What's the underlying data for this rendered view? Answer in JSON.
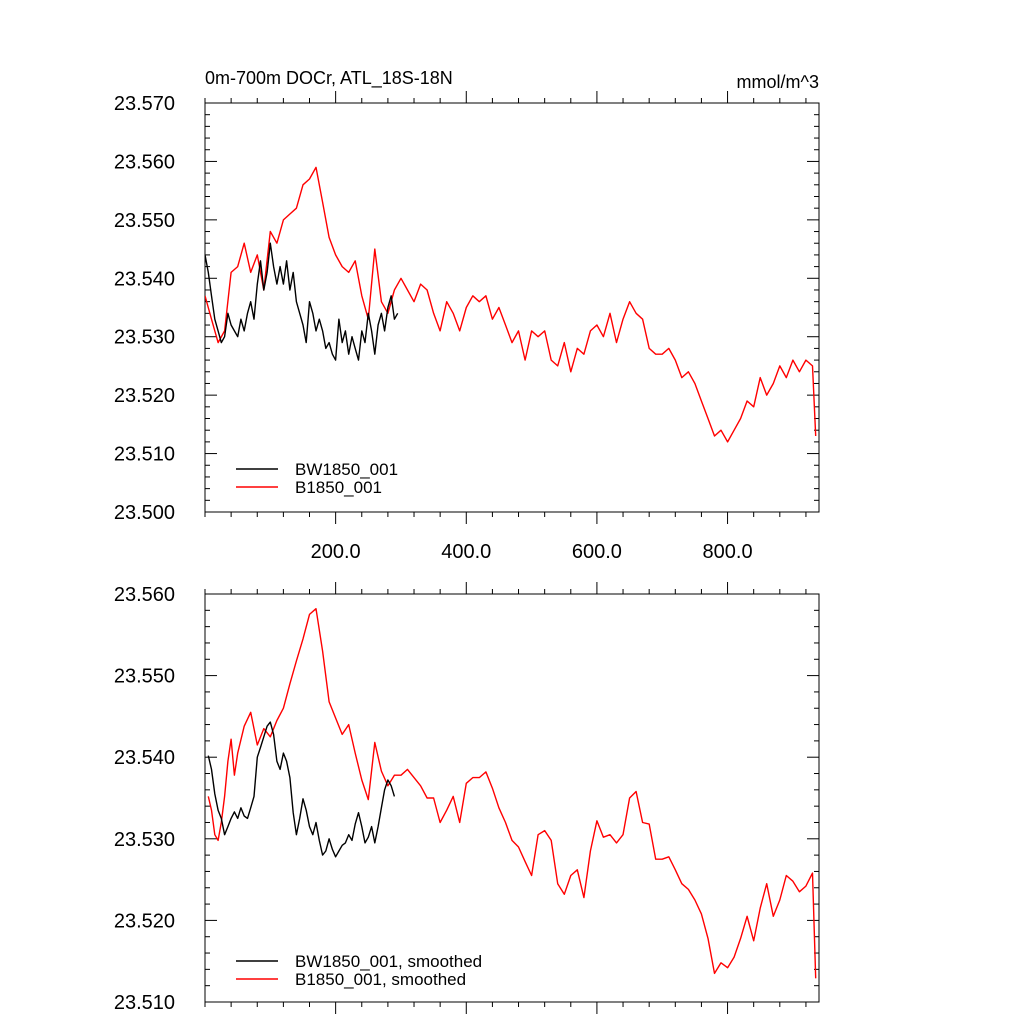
{
  "chart_data": [
    {
      "type": "line",
      "title": "0m-700m DOCr, ATL_18S-18N",
      "units": "mmol/m^3",
      "xlabel": "",
      "ylabel": "",
      "xlim": [
        0,
        940
      ],
      "ylim": [
        23.5,
        23.57
      ],
      "xticks": [
        200,
        400,
        600,
        800
      ],
      "xtick_labels": [
        "200.0",
        "400.0",
        "600.0",
        "800.0"
      ],
      "yticks": [
        23.5,
        23.51,
        23.52,
        23.53,
        23.54,
        23.55,
        23.56,
        23.57
      ],
      "ytick_labels": [
        "23.500",
        "23.510",
        "23.520",
        "23.530",
        "23.540",
        "23.550",
        "23.560",
        "23.570"
      ],
      "grid": false,
      "legend_position": "bottom-left",
      "series": [
        {
          "name": "BW1850_001",
          "color": "#000000",
          "x": [
            0,
            5,
            10,
            15,
            20,
            25,
            30,
            35,
            40,
            45,
            50,
            55,
            60,
            65,
            70,
            75,
            80,
            85,
            90,
            95,
            100,
            105,
            110,
            115,
            120,
            125,
            130,
            135,
            140,
            145,
            150,
            155,
            160,
            165,
            170,
            175,
            180,
            185,
            190,
            195,
            200,
            205,
            210,
            215,
            220,
            225,
            230,
            235,
            240,
            245,
            250,
            255,
            260,
            265,
            270,
            275,
            280,
            285,
            290,
            295
          ],
          "y": [
            23.544,
            23.541,
            23.537,
            23.533,
            23.531,
            23.529,
            23.53,
            23.534,
            23.532,
            23.531,
            23.53,
            23.533,
            23.531,
            23.534,
            23.536,
            23.533,
            23.539,
            23.543,
            23.538,
            23.541,
            23.546,
            23.542,
            23.539,
            23.542,
            23.539,
            23.543,
            23.538,
            23.541,
            23.536,
            23.534,
            23.532,
            23.529,
            23.536,
            23.534,
            23.531,
            23.533,
            23.531,
            23.528,
            23.529,
            23.527,
            23.526,
            23.533,
            23.529,
            23.531,
            23.527,
            23.53,
            23.528,
            23.526,
            23.531,
            23.529,
            23.534,
            23.531,
            23.527,
            23.532,
            23.534,
            23.531,
            23.535,
            23.537,
            23.533,
            23.534
          ]
        },
        {
          "name": "B1850_001",
          "color": "#ff0000",
          "x": [
            0,
            10,
            20,
            30,
            40,
            50,
            60,
            70,
            80,
            90,
            100,
            110,
            120,
            130,
            140,
            150,
            160,
            170,
            180,
            190,
            200,
            210,
            220,
            230,
            240,
            250,
            260,
            270,
            280,
            290,
            300,
            310,
            320,
            330,
            340,
            350,
            360,
            370,
            380,
            390,
            400,
            410,
            420,
            430,
            440,
            450,
            460,
            470,
            480,
            490,
            500,
            510,
            520,
            530,
            540,
            550,
            560,
            570,
            580,
            590,
            600,
            610,
            620,
            630,
            640,
            650,
            660,
            670,
            680,
            690,
            700,
            710,
            720,
            730,
            740,
            750,
            760,
            770,
            780,
            790,
            800,
            810,
            820,
            830,
            840,
            850,
            860,
            870,
            880,
            890,
            900,
            910,
            920,
            930,
            935
          ],
          "y": [
            23.537,
            23.533,
            23.529,
            23.531,
            23.541,
            23.542,
            23.546,
            23.541,
            23.544,
            23.538,
            23.548,
            23.546,
            23.55,
            23.551,
            23.552,
            23.556,
            23.557,
            23.559,
            23.553,
            23.547,
            23.544,
            23.542,
            23.541,
            23.543,
            23.537,
            23.533,
            23.545,
            23.536,
            23.534,
            23.538,
            23.54,
            23.538,
            23.536,
            23.539,
            23.538,
            23.534,
            23.531,
            23.536,
            23.534,
            23.531,
            23.535,
            23.537,
            23.536,
            23.537,
            23.533,
            23.535,
            23.532,
            23.529,
            23.531,
            23.526,
            23.531,
            23.53,
            23.531,
            23.526,
            23.525,
            23.529,
            23.524,
            23.528,
            23.527,
            23.531,
            23.532,
            23.53,
            23.534,
            23.529,
            23.533,
            23.536,
            23.534,
            23.533,
            23.528,
            23.527,
            23.527,
            23.528,
            23.526,
            23.523,
            23.524,
            23.522,
            23.519,
            23.516,
            23.513,
            23.514,
            23.512,
            23.514,
            23.516,
            23.519,
            23.518,
            23.523,
            23.52,
            23.522,
            23.525,
            23.523,
            23.526,
            23.524,
            23.526,
            23.525,
            23.513
          ]
        }
      ]
    },
    {
      "type": "line",
      "title": "",
      "xlabel": "",
      "ylabel": "",
      "xlim": [
        0,
        940
      ],
      "ylim": [
        23.51,
        23.56
      ],
      "xticks": [
        200,
        400,
        600,
        800
      ],
      "xtick_labels": [],
      "yticks": [
        23.51,
        23.52,
        23.53,
        23.54,
        23.55,
        23.56
      ],
      "ytick_labels": [
        "23.510",
        "23.520",
        "23.530",
        "23.540",
        "23.550",
        "23.560"
      ],
      "grid": false,
      "legend_position": "bottom-left",
      "series": [
        {
          "name": "BW1850_001, smoothed",
          "color": "#000000",
          "x": [
            5,
            10,
            15,
            20,
            25,
            30,
            35,
            40,
            45,
            50,
            55,
            60,
            65,
            70,
            75,
            80,
            85,
            90,
            95,
            100,
            105,
            110,
            115,
            120,
            125,
            130,
            135,
            140,
            145,
            150,
            155,
            160,
            165,
            170,
            175,
            180,
            185,
            190,
            195,
            200,
            205,
            210,
            215,
            220,
            225,
            230,
            235,
            240,
            245,
            250,
            255,
            260,
            265,
            270,
            275,
            280,
            285,
            290
          ],
          "y": [
            23.5402,
            23.5385,
            23.5355,
            23.5335,
            23.5325,
            23.5305,
            23.5315,
            23.5325,
            23.5333,
            23.5325,
            23.5338,
            23.5328,
            23.5325,
            23.5338,
            23.5352,
            23.54,
            23.5412,
            23.5425,
            23.5438,
            23.5443,
            23.5428,
            23.5395,
            23.5385,
            23.5405,
            23.5395,
            23.5375,
            23.5332,
            23.5305,
            23.5325,
            23.5349,
            23.5335,
            23.5315,
            23.5305,
            23.532,
            23.5298,
            23.528,
            23.5285,
            23.53,
            23.5287,
            23.5278,
            23.5285,
            23.5292,
            23.5295,
            23.5305,
            23.5298,
            23.5318,
            23.5332,
            23.5315,
            23.5295,
            23.5302,
            23.5315,
            23.5295,
            23.5315,
            23.5338,
            23.536,
            23.5372,
            23.5365,
            23.5352
          ]
        },
        {
          "name": "B1850_001, smoothed",
          "color": "#ff0000",
          "x": [
            5,
            10,
            15,
            20,
            25,
            30,
            35,
            40,
            45,
            50,
            60,
            70,
            80,
            90,
            100,
            110,
            120,
            130,
            140,
            150,
            160,
            170,
            180,
            190,
            200,
            210,
            220,
            230,
            240,
            250,
            260,
            270,
            280,
            290,
            300,
            310,
            320,
            330,
            340,
            350,
            360,
            370,
            380,
            390,
            400,
            410,
            420,
            430,
            440,
            450,
            460,
            470,
            480,
            490,
            500,
            510,
            520,
            530,
            540,
            550,
            560,
            570,
            580,
            590,
            600,
            610,
            620,
            630,
            640,
            650,
            660,
            670,
            680,
            690,
            700,
            710,
            720,
            730,
            740,
            750,
            760,
            770,
            780,
            790,
            800,
            810,
            820,
            830,
            840,
            850,
            860,
            870,
            880,
            890,
            900,
            910,
            920,
            930,
            935
          ],
          "y": [
            23.5352,
            23.5335,
            23.5305,
            23.5298,
            23.532,
            23.5352,
            23.5395,
            23.5422,
            23.5378,
            23.5405,
            23.5438,
            23.5455,
            23.5415,
            23.5435,
            23.5425,
            23.5445,
            23.546,
            23.549,
            23.5518,
            23.5545,
            23.5575,
            23.5582,
            23.553,
            23.5468,
            23.5448,
            23.5428,
            23.544,
            23.5405,
            23.5372,
            23.5348,
            23.5418,
            23.5383,
            23.5365,
            23.5378,
            23.5378,
            23.5385,
            23.5375,
            23.5365,
            23.535,
            23.535,
            23.532,
            23.5335,
            23.5352,
            23.532,
            23.5368,
            23.5375,
            23.5375,
            23.5382,
            23.5362,
            23.5338,
            23.532,
            23.5298,
            23.529,
            23.5272,
            23.5255,
            23.5305,
            23.531,
            23.5298,
            23.5245,
            23.5232,
            23.5255,
            23.5262,
            23.5228,
            23.5285,
            23.5322,
            23.5302,
            23.5305,
            23.5295,
            23.5305,
            23.535,
            23.5358,
            23.532,
            23.5318,
            23.5275,
            23.5275,
            23.5278,
            23.5262,
            23.5245,
            23.5238,
            23.5225,
            23.5208,
            23.5178,
            23.5135,
            23.5148,
            23.5142,
            23.5155,
            23.5178,
            23.5205,
            23.5175,
            23.5215,
            23.5245,
            23.5205,
            23.5225,
            23.5255,
            23.5248,
            23.5235,
            23.5242,
            23.5258,
            23.5129
          ]
        }
      ]
    }
  ]
}
